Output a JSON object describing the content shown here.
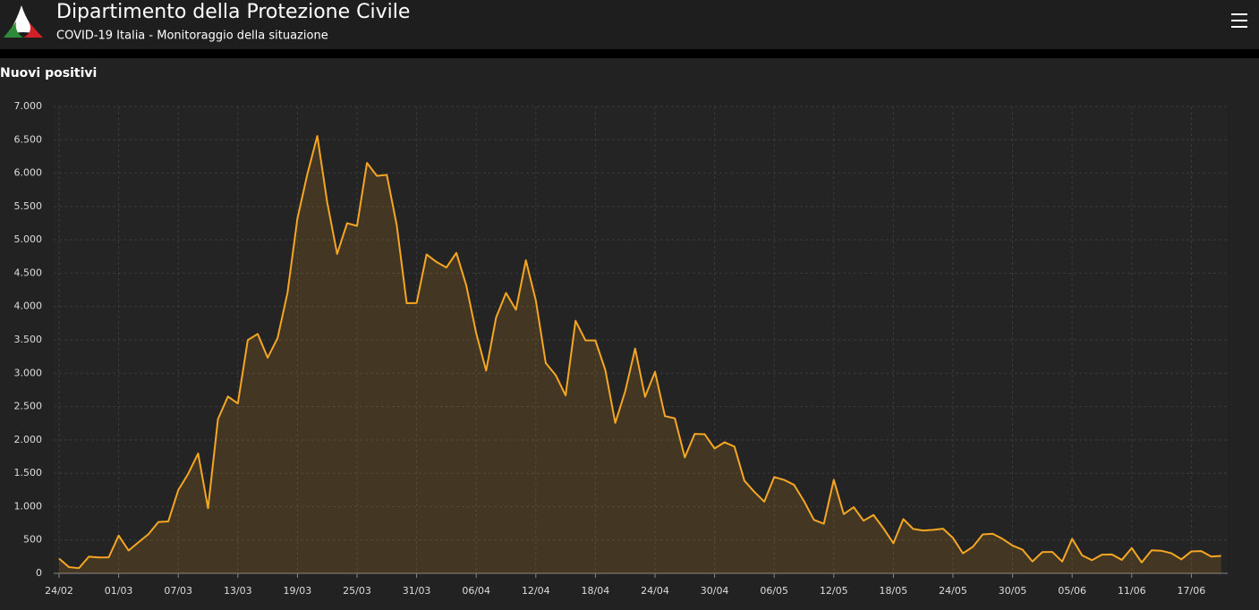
{
  "header": {
    "title": "Dipartimento della Protezione Civile",
    "subtitle": "COVID-19 Italia - Monitoraggio della situazione"
  },
  "chart_data": {
    "type": "area",
    "title": "Nuovi positivi",
    "color": "#f5a623",
    "grid": true,
    "categories": [
      "24/02",
      null,
      null,
      null,
      null,
      null,
      "01/03",
      null,
      null,
      null,
      null,
      null,
      "07/03",
      null,
      null,
      null,
      null,
      null,
      "13/03",
      null,
      null,
      null,
      null,
      null,
      "19/03",
      null,
      null,
      null,
      null,
      null,
      "25/03",
      null,
      null,
      null,
      null,
      null,
      "31/03",
      null,
      null,
      null,
      null,
      null,
      "06/04",
      null,
      null,
      null,
      null,
      null,
      "12/04",
      null,
      null,
      null,
      null,
      null,
      "18/04",
      null,
      null,
      null,
      null,
      null,
      "24/04",
      null,
      null,
      null,
      null,
      null,
      "30/04",
      null,
      null,
      null,
      null,
      null,
      "06/05",
      null,
      null,
      null,
      null,
      null,
      "12/05",
      null,
      null,
      null,
      null,
      null,
      "18/05",
      null,
      null,
      null,
      null,
      null,
      "24/05",
      null,
      null,
      null,
      null,
      null,
      "30/05",
      null,
      null,
      null,
      null,
      null,
      "05/06",
      null,
      null,
      null,
      null,
      null,
      "11/06",
      null,
      null,
      null,
      null,
      null,
      "17/06",
      null,
      null,
      null
    ],
    "values": [
      221,
      93,
      78,
      250,
      238,
      240,
      566,
      342,
      466,
      587,
      769,
      778,
      1247,
      1492,
      1797,
      977,
      2313,
      2651,
      2547,
      3497,
      3590,
      3233,
      3526,
      4207,
      5322,
      5986,
      6557,
      5560,
      4789,
      5249,
      5210,
      6153,
      5959,
      5974,
      5217,
      4050,
      4053,
      4782,
      4668,
      4585,
      4805,
      4316,
      3599,
      3039,
      3836,
      4204,
      3951,
      4694,
      4092,
      3153,
      2972,
      2667,
      3786,
      3493,
      3491,
      3047,
      2256,
      2729,
      3370,
      2646,
      3021,
      2357,
      2324,
      1739,
      2091,
      2086,
      1872,
      1965,
      1900,
      1389,
      1221,
      1075,
      1444,
      1401,
      1327,
      1083,
      802,
      744,
      1402,
      888,
      992,
      789,
      875,
      675,
      451,
      813,
      665,
      642,
      652,
      669,
      531,
      300,
      397,
      584,
      593,
      516,
      416,
      355,
      178,
      318,
      321,
      177,
      518,
      270,
      197,
      280,
      283,
      202,
      379,
      163,
      346,
      338,
      301,
      210,
      329,
      333,
      251,
      262
    ],
    "ylim": [
      0,
      7000
    ],
    "yticks": [
      0,
      500,
      {
        "value": 1000,
        "label": "1.000"
      },
      {
        "value": 1500,
        "label": "1.500"
      },
      {
        "value": 2000,
        "label": "2.000"
      },
      {
        "value": 2500,
        "label": "2.500"
      },
      {
        "value": 3000,
        "label": "3.000"
      },
      {
        "value": 3500,
        "label": "3.500"
      },
      {
        "value": 4000,
        "label": "4.000"
      },
      {
        "value": 4500,
        "label": "4.500"
      },
      {
        "value": 5000,
        "label": "5.000"
      },
      {
        "value": 5500,
        "label": "5.500"
      },
      {
        "value": 6000,
        "label": "6.000"
      },
      {
        "value": 6500,
        "label": "6.500"
      },
      {
        "value": 7000,
        "label": "7.000"
      }
    ]
  }
}
